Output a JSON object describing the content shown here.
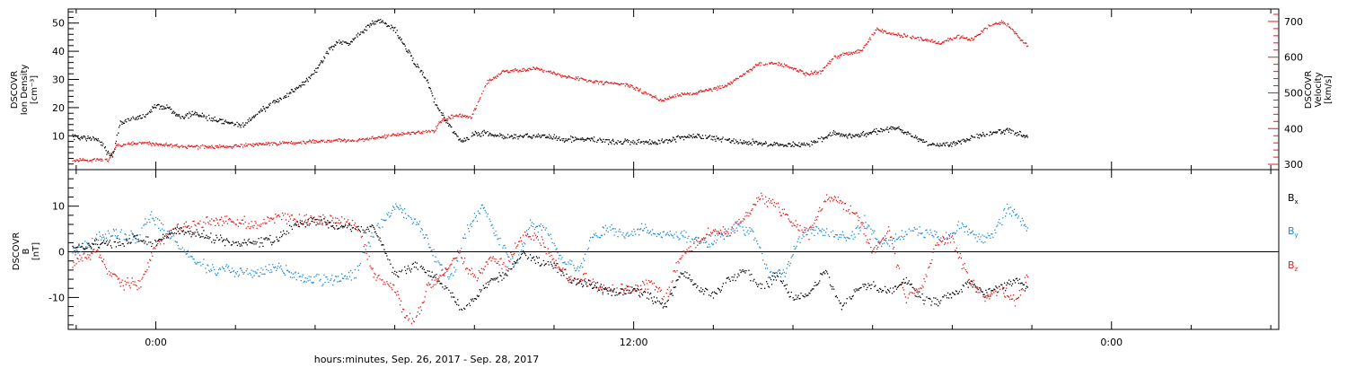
{
  "xlabel": "hours:minutes, Sep. 26, 2017 - Sep. 28, 2017",
  "colors": {
    "black": "#000000",
    "red": "#e41a1c",
    "blue": "#1f8ad6"
  },
  "chart_data": [
    {
      "type": "scatter",
      "panel": "top",
      "ylabel_lines": [
        "DSCOVR",
        "Ion Density",
        "[cm⁻³]"
      ],
      "y2label_lines": [
        "DSCOVR",
        "Velocity",
        "[km/s]"
      ],
      "x_range_hours": [
        -2.2,
        28.2
      ],
      "xticks": [
        {
          "h": 0,
          "label": "0:00"
        },
        {
          "h": 12,
          "label": "12:00"
        },
        {
          "h": 24,
          "label": "0:00"
        }
      ],
      "ylim": [
        -2,
        55
      ],
      "y2lim": [
        285,
        735
      ],
      "yticks": [
        10,
        20,
        30,
        40,
        50
      ],
      "y2ticks": [
        300,
        400,
        500,
        600,
        700
      ],
      "series": [
        {
          "key": "density",
          "axis": "left",
          "color": "black",
          "x": [
            -2.1,
            -1.5,
            -1.2,
            -1.1,
            -0.9,
            -0.6,
            -0.3,
            0,
            0.3,
            0.6,
            1.0,
            1.4,
            1.8,
            2.2,
            2.6,
            3.0,
            3.3,
            3.6,
            4.0,
            4.3,
            4.6,
            4.8,
            5.0,
            5.3,
            5.6,
            6.0,
            6.4,
            6.8,
            7.0,
            7.3,
            7.5,
            7.7,
            8.0,
            8.3,
            8.6,
            8.9,
            9.2,
            9.5,
            9.8,
            10.2,
            10.6,
            11.0,
            11.4,
            11.8,
            12.2,
            12.6,
            13.0,
            13.4,
            13.8,
            14.2,
            14.6,
            15.0,
            15.4,
            15.8,
            16.2,
            16.6,
            17.0,
            17.4,
            17.8,
            18.2,
            18.6,
            19.0,
            19.4,
            19.8,
            20.2,
            20.6,
            21.0,
            21.4,
            21.9
          ],
          "y": [
            10,
            9,
            4,
            3,
            15,
            16,
            17,
            21,
            20,
            17,
            18,
            16,
            15,
            14,
            19,
            22,
            25,
            28,
            33,
            40,
            44,
            43,
            45,
            49,
            51,
            48,
            38,
            30,
            22,
            15,
            11,
            8,
            11,
            11,
            10,
            10,
            10,
            10,
            10,
            9,
            9,
            9,
            8,
            8,
            8,
            8,
            9,
            10,
            10,
            9,
            8,
            8,
            7,
            7,
            7,
            8,
            11,
            10,
            11,
            12,
            13,
            10,
            7,
            7,
            8,
            10,
            11,
            12,
            10
          ]
        },
        {
          "key": "velocity",
          "axis": "right",
          "color": "red",
          "x": [
            -2.1,
            -1.5,
            -1.2,
            -1.0,
            -0.5,
            0,
            0.5,
            1.0,
            1.5,
            2.0,
            2.5,
            3.0,
            3.5,
            4.0,
            4.5,
            5.0,
            5.5,
            6.0,
            6.5,
            7.0,
            7.1,
            7.3,
            7.6,
            7.9,
            8.3,
            8.7,
            9.1,
            9.5,
            9.9,
            10.3,
            10.7,
            11.1,
            11.5,
            11.9,
            12.3,
            12.7,
            13.1,
            13.5,
            13.9,
            14.3,
            14.7,
            15.1,
            15.5,
            15.9,
            16.3,
            16.7,
            17.0,
            17.3,
            17.7,
            18.1,
            18.5,
            18.9,
            19.3,
            19.7,
            20.1,
            20.5,
            20.9,
            21.3,
            21.9
          ],
          "y": [
            313,
            314,
            312,
            355,
            360,
            358,
            353,
            350,
            350,
            352,
            357,
            360,
            362,
            365,
            368,
            368,
            375,
            385,
            390,
            395,
            420,
            430,
            440,
            430,
            530,
            560,
            565,
            570,
            560,
            545,
            540,
            530,
            530,
            520,
            500,
            480,
            495,
            500,
            510,
            520,
            550,
            580,
            585,
            575,
            555,
            560,
            600,
            610,
            620,
            680,
            665,
            660,
            650,
            640,
            660,
            650,
            690,
            700,
            630
          ]
        }
      ]
    },
    {
      "type": "scatter",
      "panel": "bottom",
      "ylabel_lines": [
        "DSCOVR",
        "B",
        "[nT]"
      ],
      "x_range_hours": [
        -2.2,
        28.2
      ],
      "ylim": [
        -17,
        18
      ],
      "yticks": [
        -10,
        0,
        10
      ],
      "zero_line": true,
      "series": [
        {
          "key": "bx",
          "name": "B",
          "subscript": "x",
          "color": "black",
          "x": [
            -2.1,
            -1.5,
            -1.0,
            -0.5,
            0,
            0.5,
            1.0,
            1.5,
            2.0,
            2.5,
            3.0,
            3.5,
            4.0,
            4.5,
            5.0,
            5.5,
            6.0,
            6.5,
            7.0,
            7.3,
            7.7,
            8.0,
            8.4,
            8.8,
            9.2,
            9.6,
            10.0,
            10.4,
            10.8,
            11.2,
            11.6,
            12.0,
            12.4,
            12.8,
            13.2,
            13.6,
            14.0,
            14.4,
            14.8,
            15.2,
            15.6,
            16.0,
            16.4,
            16.8,
            17.2,
            17.6,
            18.0,
            18.4,
            18.8,
            19.2,
            19.6,
            20.0,
            20.4,
            20.8,
            21.2,
            21.6,
            21.9
          ],
          "y": [
            1,
            2,
            2,
            3,
            2,
            5,
            4,
            3,
            2,
            2,
            3,
            6,
            7,
            6,
            5,
            5,
            -5,
            -3,
            -5,
            -8,
            -13,
            -10,
            -6,
            -5,
            0,
            -2,
            -3,
            -6,
            -7,
            -8,
            -9,
            -8,
            -10,
            -12,
            -4,
            -8,
            -9,
            -6,
            -4,
            -8,
            -5,
            -10,
            -9,
            -4,
            -12,
            -8,
            -7,
            -9,
            -6,
            -10,
            -11,
            -9,
            -7,
            -9,
            -8,
            -6,
            -8
          ]
        },
        {
          "key": "by",
          "name": "B",
          "subscript": "y",
          "color": "blue",
          "x": [
            -2.1,
            -1.5,
            -1.0,
            -0.5,
            -0.2,
            0,
            0.5,
            1.0,
            1.5,
            2.0,
            2.5,
            3.0,
            3.5,
            4.0,
            4.5,
            5.0,
            5.5,
            6.0,
            6.3,
            6.6,
            7.0,
            7.4,
            7.8,
            8.2,
            8.6,
            9.0,
            9.4,
            9.8,
            10.2,
            10.6,
            11.0,
            11.4,
            11.8,
            12.2,
            12.6,
            13.0,
            13.4,
            13.8,
            14.2,
            14.6,
            15.0,
            15.4,
            15.8,
            16.2,
            16.6,
            17.0,
            17.4,
            17.8,
            18.2,
            18.6,
            19.0,
            19.4,
            19.8,
            20.2,
            20.6,
            21.0,
            21.4,
            21.9
          ],
          "y": [
            0,
            3,
            4,
            3,
            8,
            7,
            2,
            -2,
            -4,
            -4,
            -5,
            -3,
            -5,
            -6,
            -6,
            -5,
            5,
            10,
            8,
            6,
            -1,
            -6,
            5,
            10,
            3,
            -3,
            6,
            5,
            -2,
            -4,
            4,
            5,
            4,
            5,
            4,
            4,
            3,
            2,
            4,
            6,
            4,
            -5,
            -4,
            4,
            5,
            4,
            3,
            7,
            2,
            3,
            5,
            4,
            3,
            6,
            3,
            4,
            10,
            5
          ]
        },
        {
          "key": "bz",
          "name": "B",
          "subscript": "z",
          "color": "red",
          "x": [
            -2.1,
            -1.5,
            -1.2,
            -0.8,
            -0.4,
            0,
            0.5,
            1.0,
            1.5,
            2.0,
            2.5,
            3.0,
            3.5,
            4.0,
            4.5,
            5.0,
            5.5,
            6.0,
            6.2,
            6.5,
            6.8,
            7.2,
            7.6,
            8.0,
            8.4,
            8.8,
            9.2,
            9.6,
            10.0,
            10.4,
            10.8,
            11.2,
            11.6,
            12.0,
            12.4,
            12.8,
            13.2,
            13.6,
            14.0,
            14.4,
            14.8,
            15.2,
            15.6,
            16.0,
            16.4,
            16.8,
            17.2,
            17.6,
            18.0,
            18.4,
            18.8,
            19.2,
            19.6,
            20.0,
            20.4,
            20.8,
            21.2,
            21.6,
            21.9
          ],
          "y": [
            -2,
            0,
            -4,
            -7,
            -7,
            2,
            5,
            6,
            7,
            7,
            6,
            8,
            7,
            7,
            7,
            6,
            -5,
            -8,
            -13,
            -15,
            -8,
            -5,
            0,
            -6,
            -1,
            -3,
            4,
            3,
            -2,
            -6,
            -6,
            -8,
            -8,
            -8,
            -7,
            -10,
            0,
            2,
            5,
            4,
            8,
            12,
            10,
            6,
            4,
            12,
            11,
            8,
            0,
            5,
            -10,
            -8,
            2,
            3,
            -6,
            -10,
            -8,
            -11,
            -4
          ]
        }
      ]
    }
  ]
}
